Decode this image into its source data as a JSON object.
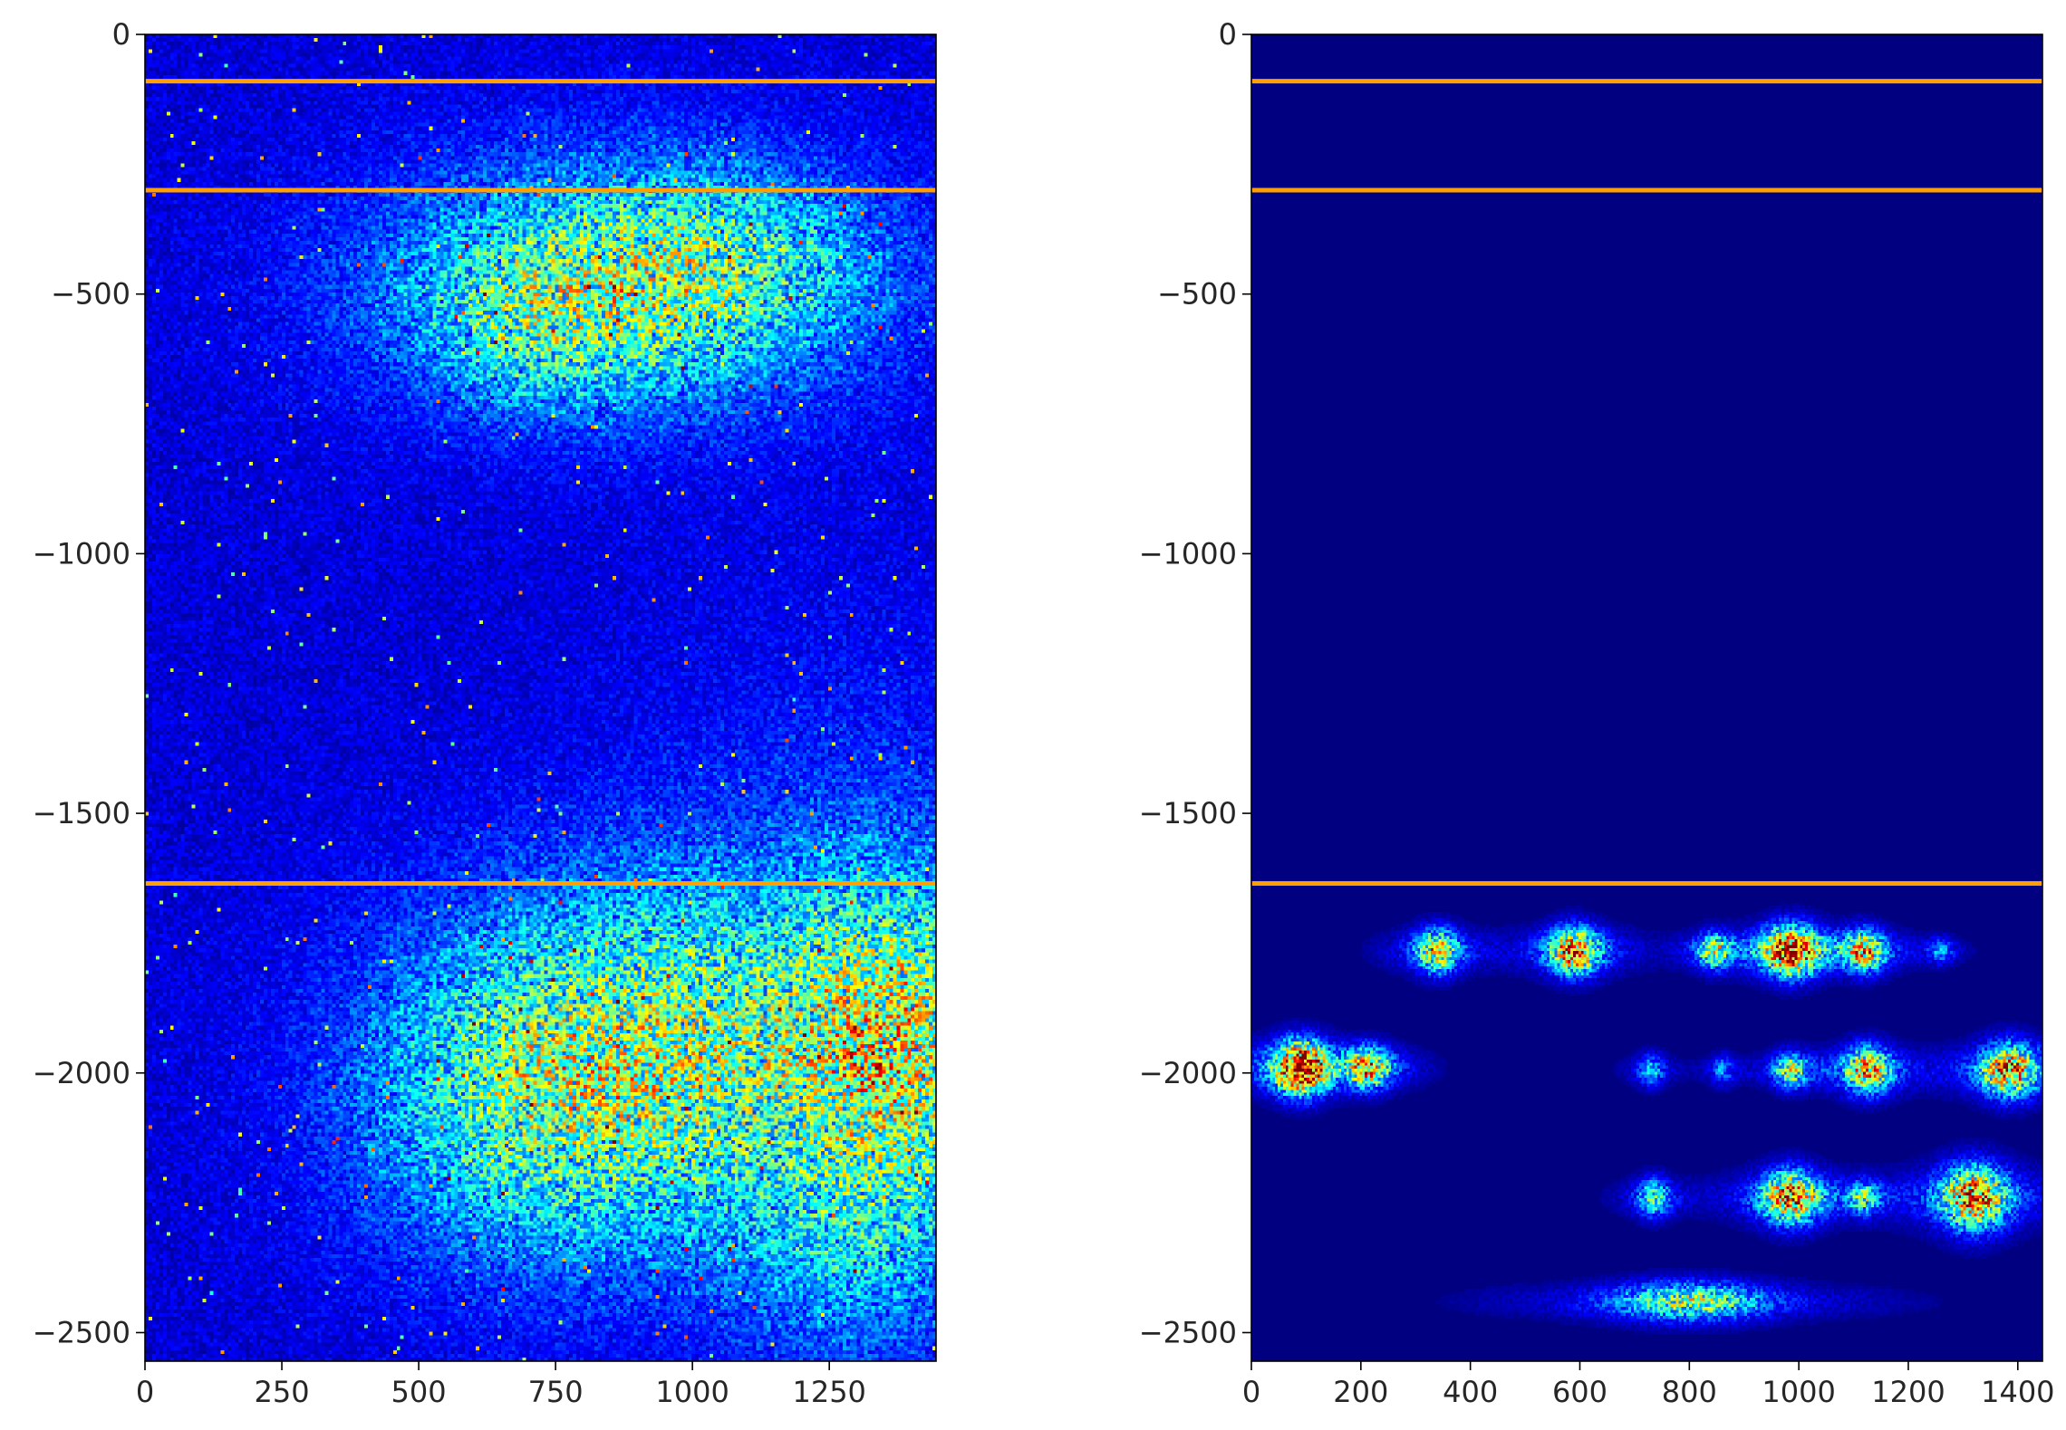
{
  "chart_data": [
    {
      "type": "heatmap",
      "colormap": "jet",
      "xlim": [
        0,
        1445
      ],
      "ylim": [
        -2555,
        0
      ],
      "x_ticks": [
        0,
        250,
        500,
        750,
        1000,
        1250
      ],
      "x_tick_labels": [
        "0",
        "250",
        "500",
        "750",
        "1000",
        "1250"
      ],
      "y_ticks": [
        0,
        -500,
        -1000,
        -1500,
        -2000,
        -2500
      ],
      "y_tick_labels": [
        "0",
        "−500",
        "−1000",
        "−1500",
        "−2000",
        "−2500"
      ],
      "horizontal_lines": [
        -90,
        -300,
        -1635
      ],
      "line_color": "#ff9f00",
      "background_intensity": 0.12,
      "blobs": [
        {
          "x": 880,
          "y": -480,
          "sx": 320,
          "sy": 170,
          "amp": 0.34
        },
        {
          "x": 720,
          "y": -560,
          "sx": 140,
          "sy": 110,
          "amp": 0.12
        },
        {
          "x": 1060,
          "y": -420,
          "sx": 170,
          "sy": 110,
          "amp": 0.1
        },
        {
          "x": 1000,
          "y": -1950,
          "sx": 330,
          "sy": 240,
          "amp": 0.34
        },
        {
          "x": 1380,
          "y": -1960,
          "sx": 130,
          "sy": 230,
          "amp": 0.3
        },
        {
          "x": 700,
          "y": -2080,
          "sx": 220,
          "sy": 220,
          "amp": 0.2
        },
        {
          "x": 1280,
          "y": -2380,
          "sx": 170,
          "sy": 160,
          "amp": 0.14
        },
        {
          "x": 1300,
          "y": -1450,
          "sx": 300,
          "sy": 300,
          "amp": 0.05
        }
      ]
    },
    {
      "type": "heatmap",
      "colormap": "jet",
      "xlim": [
        0,
        1445
      ],
      "ylim": [
        -2555,
        0
      ],
      "x_ticks": [
        0,
        200,
        400,
        600,
        800,
        1000,
        1200,
        1400
      ],
      "x_tick_labels": [
        "0",
        "200",
        "400",
        "600",
        "800",
        "1000",
        "1200",
        "1400"
      ],
      "y_ticks": [
        0,
        -500,
        -1000,
        -1500,
        -2000,
        -2500
      ],
      "y_tick_labels": [
        "0",
        "−500",
        "−1000",
        "−1500",
        "−2000",
        "−2500"
      ],
      "horizontal_lines": [
        -90,
        -300,
        -1635
      ],
      "line_color": "#ff9f00",
      "background_intensity": 0.0,
      "spots": [
        {
          "x": 340,
          "y": -1765,
          "sx": 26,
          "sy": 30,
          "amp": 0.5
        },
        {
          "x": 590,
          "y": -1765,
          "sx": 30,
          "sy": 32,
          "amp": 0.62
        },
        {
          "x": 845,
          "y": -1765,
          "sx": 20,
          "sy": 24,
          "amp": 0.4
        },
        {
          "x": 985,
          "y": -1765,
          "sx": 34,
          "sy": 34,
          "amp": 0.7
        },
        {
          "x": 1120,
          "y": -1765,
          "sx": 24,
          "sy": 28,
          "amp": 0.5
        },
        {
          "x": 1260,
          "y": -1765,
          "sx": 16,
          "sy": 18,
          "amp": 0.2
        },
        {
          "x": 90,
          "y": -1990,
          "sx": 32,
          "sy": 36,
          "amp": 0.8
        },
        {
          "x": 215,
          "y": -1990,
          "sx": 26,
          "sy": 28,
          "amp": 0.5
        },
        {
          "x": 730,
          "y": -1995,
          "sx": 16,
          "sy": 22,
          "amp": 0.25
        },
        {
          "x": 860,
          "y": -1995,
          "sx": 14,
          "sy": 20,
          "amp": 0.2
        },
        {
          "x": 985,
          "y": -1995,
          "sx": 20,
          "sy": 24,
          "amp": 0.4
        },
        {
          "x": 1125,
          "y": -1995,
          "sx": 28,
          "sy": 32,
          "amp": 0.55
        },
        {
          "x": 1385,
          "y": -1995,
          "sx": 34,
          "sy": 36,
          "amp": 0.6
        },
        {
          "x": 735,
          "y": -2240,
          "sx": 20,
          "sy": 26,
          "amp": 0.35
        },
        {
          "x": 985,
          "y": -2240,
          "sx": 34,
          "sy": 36,
          "amp": 0.62
        },
        {
          "x": 1120,
          "y": -2240,
          "sx": 18,
          "sy": 22,
          "amp": 0.3
        },
        {
          "x": 1320,
          "y": -2240,
          "sx": 40,
          "sy": 44,
          "amp": 0.6
        },
        {
          "x": 800,
          "y": -2440,
          "sx": 90,
          "sy": 26,
          "amp": 0.4
        }
      ]
    }
  ]
}
